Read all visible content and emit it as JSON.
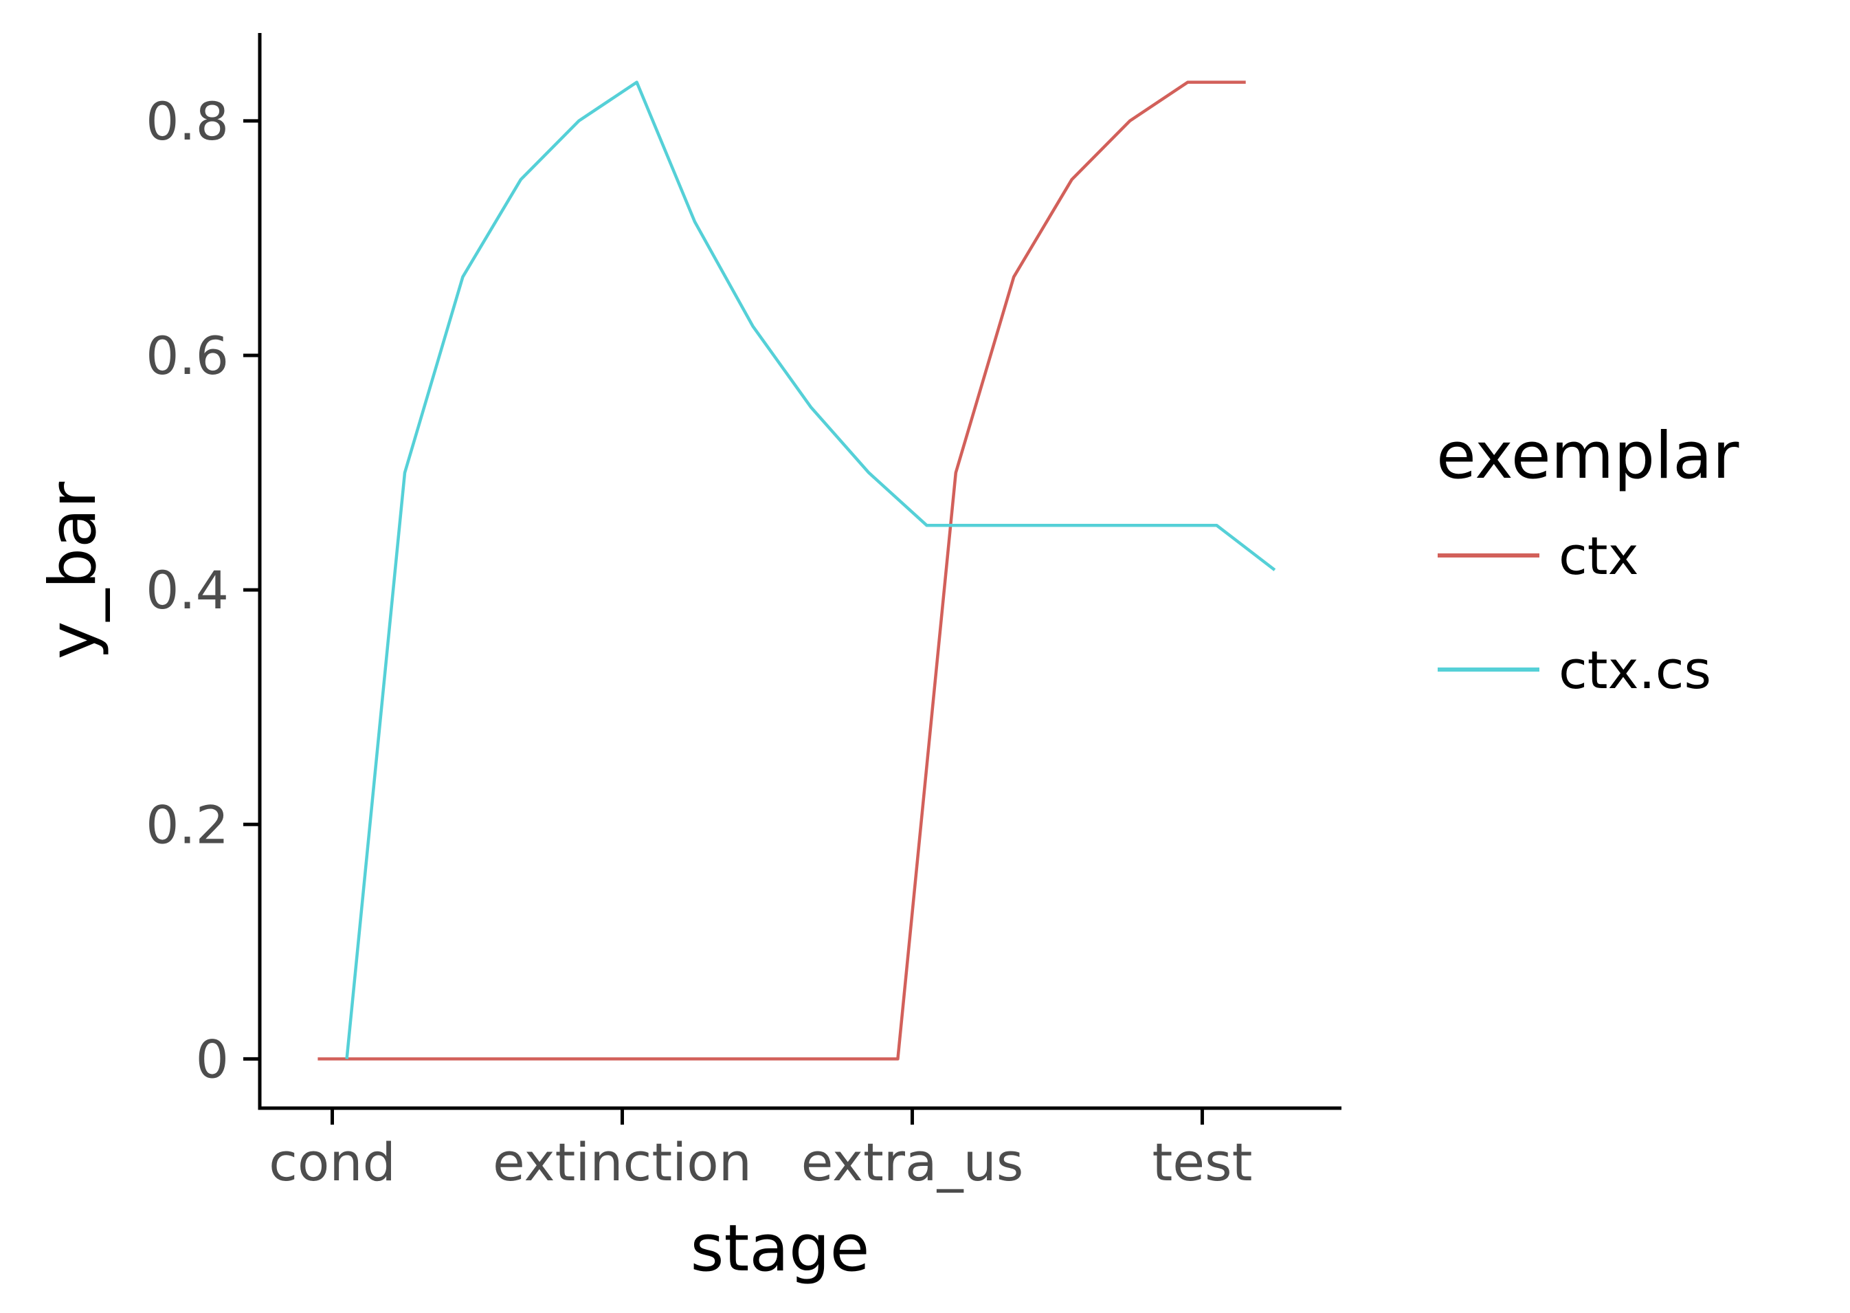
{
  "chart_data": {
    "type": "line",
    "xlabel": "stage",
    "ylabel": "y_bar",
    "categories": [
      "cond",
      "extinction",
      "extra_us",
      "test"
    ],
    "x_range": [
      -0.25,
      3.48
    ],
    "ylim": [
      -0.042,
      0.875
    ],
    "yticks": [
      0,
      0.2,
      0.4,
      0.6,
      0.8
    ],
    "ytick_labels": [
      "0",
      "0.2",
      "0.4",
      "0.6",
      "0.8"
    ],
    "grid": false,
    "legend": {
      "title": "exemplar",
      "placement": "right",
      "entries": [
        "ctx",
        "ctx.cs"
      ]
    },
    "series": [
      {
        "name": "ctx",
        "color": "#d2605a",
        "points": [
          [
            -0.05,
            0
          ],
          [
            0.15,
            0
          ],
          [
            0.35,
            0
          ],
          [
            0.55,
            0
          ],
          [
            0.75,
            0
          ],
          [
            0.95,
            0
          ],
          [
            1.15,
            0
          ],
          [
            1.35,
            0
          ],
          [
            1.55,
            0
          ],
          [
            1.75,
            0
          ],
          [
            1.95,
            0
          ],
          [
            2.15,
            0.5
          ],
          [
            2.35,
            0.667
          ],
          [
            2.55,
            0.75
          ],
          [
            2.75,
            0.8
          ],
          [
            2.95,
            0.833
          ],
          [
            3.15,
            0.833
          ]
        ]
      },
      {
        "name": "ctx.cs",
        "color": "#55d0d7",
        "points": [
          [
            0.05,
            0
          ],
          [
            0.25,
            0.5
          ],
          [
            0.45,
            0.667
          ],
          [
            0.65,
            0.75
          ],
          [
            0.85,
            0.8
          ],
          [
            1.05,
            0.833
          ],
          [
            1.25,
            0.714
          ],
          [
            1.45,
            0.625
          ],
          [
            1.65,
            0.556
          ],
          [
            1.85,
            0.5
          ],
          [
            2.05,
            0.455
          ],
          [
            2.25,
            0.455
          ],
          [
            2.45,
            0.455
          ],
          [
            2.65,
            0.455
          ],
          [
            2.85,
            0.455
          ],
          [
            3.05,
            0.455
          ],
          [
            3.25,
            0.417
          ]
        ]
      }
    ]
  }
}
